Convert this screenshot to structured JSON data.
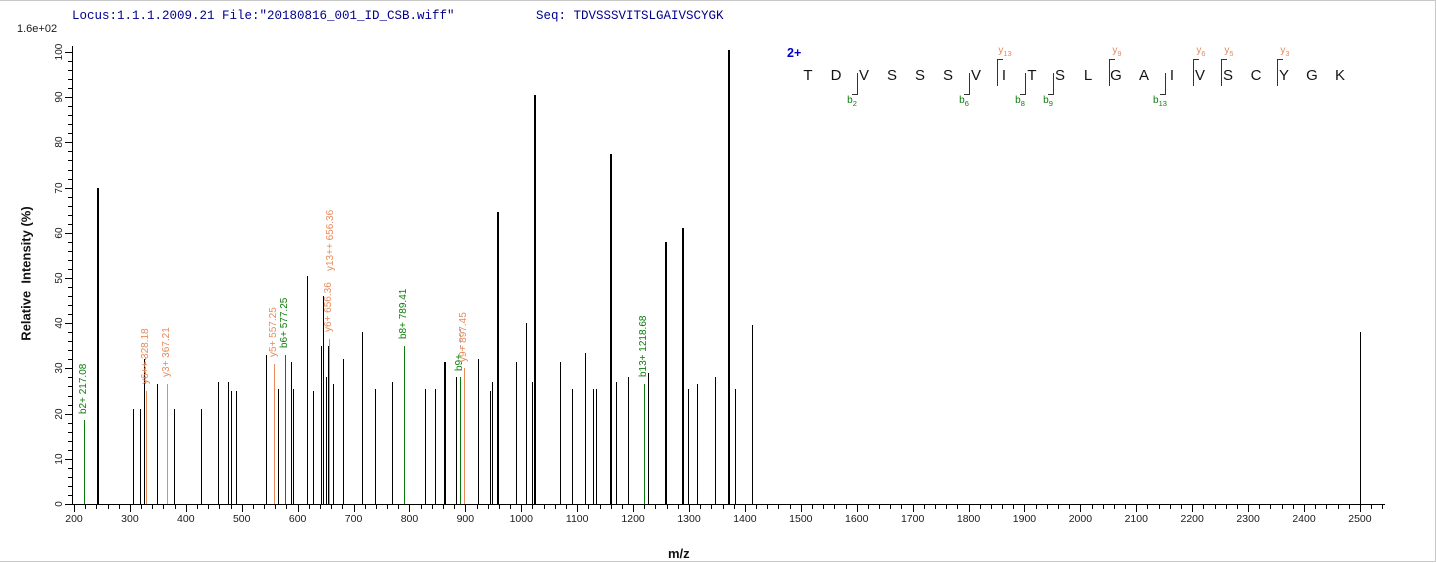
{
  "header": {
    "locus_file": "Locus:1.1.1.2009.21 File:\"20180816_001_ID_CSB.wiff\"",
    "seq_line": "Seq: TDVSSSVITSLGAIVSCYGK"
  },
  "scale_label": "1.6e+02",
  "colors": {
    "b_ion": "#0a7d0a",
    "y_ion": "#e98a5a",
    "peak": "#000000",
    "header_text": "#00008b",
    "charge_text": "#0000cc",
    "leader_dash": "#a8a8a8"
  },
  "sequence_panel": {
    "charge_label": "2+",
    "residues": "TDVSSSVITSLGAIVSCYGK",
    "b_markers": [
      {
        "ion": "b",
        "num": "2",
        "gap_after_residue": 2
      },
      {
        "ion": "b",
        "num": "6",
        "gap_after_residue": 6
      },
      {
        "ion": "b",
        "num": "8",
        "gap_after_residue": 8
      },
      {
        "ion": "b",
        "num": "9",
        "gap_after_residue": 9
      },
      {
        "ion": "b",
        "num": "13",
        "gap_after_residue": 13
      }
    ],
    "y_markers": [
      {
        "ion": "y",
        "num": "13",
        "gap_after_residue": 7
      },
      {
        "ion": "y",
        "num": "9",
        "gap_after_residue": 11
      },
      {
        "ion": "y",
        "num": "6",
        "gap_after_residue": 14
      },
      {
        "ion": "y",
        "num": "5",
        "gap_after_residue": 15
      },
      {
        "ion": "y",
        "num": "3",
        "gap_after_residue": 17
      }
    ]
  },
  "chart_data": {
    "type": "bar",
    "subtype": "centroided MS/MS fragment spectrum",
    "title": "",
    "xlabel": "m/z",
    "ylabel": "Relative  Intensity (%)",
    "xlim": [
      200,
      2545
    ],
    "ylim": [
      0,
      100
    ],
    "max_intensity_scale": "1.6e+02",
    "x_ticks": [
      200,
      300,
      400,
      500,
      600,
      700,
      800,
      900,
      1000,
      1100,
      1200,
      1300,
      1400,
      1500,
      1600,
      1700,
      1800,
      1900,
      2000,
      2100,
      2200,
      2300,
      2400,
      2500
    ],
    "x_minor_step": 20,
    "y_ticks": [
      0,
      10,
      20,
      30,
      40,
      50,
      60,
      70,
      80,
      90,
      100
    ],
    "y_minor_step": 2,
    "grid": false,
    "legend": false,
    "peaks": [
      {
        "mz": 217.08,
        "pct": 18.5,
        "ion": "b"
      },
      {
        "mz": 240.6,
        "pct": 70,
        "ion": null
      },
      {
        "mz": 305,
        "pct": 21,
        "ion": null
      },
      {
        "mz": 318,
        "pct": 21,
        "ion": null
      },
      {
        "mz": 326,
        "pct": 32,
        "ion": null
      },
      {
        "mz": 328.18,
        "pct": 25,
        "ion": "y"
      },
      {
        "mz": 348,
        "pct": 26.5,
        "ion": null
      },
      {
        "mz": 367.21,
        "pct": 26.5,
        "ion": "y"
      },
      {
        "mz": 378,
        "pct": 21,
        "ion": null
      },
      {
        "mz": 428,
        "pct": 21,
        "ion": null
      },
      {
        "mz": 458,
        "pct": 27,
        "ion": null
      },
      {
        "mz": 476,
        "pct": 27,
        "ion": null
      },
      {
        "mz": 480,
        "pct": 25,
        "ion": null
      },
      {
        "mz": 490,
        "pct": 25,
        "ion": null
      },
      {
        "mz": 543,
        "pct": 33,
        "ion": null
      },
      {
        "mz": 557.25,
        "pct": 31,
        "ion": "y"
      },
      {
        "mz": 564,
        "pct": 25.5,
        "ion": null
      },
      {
        "mz": 577.25,
        "pct": 33,
        "ion": "b"
      },
      {
        "mz": 588,
        "pct": 31.5,
        "ion": null
      },
      {
        "mz": 591,
        "pct": 25.5,
        "ion": null
      },
      {
        "mz": 617,
        "pct": 50.5,
        "ion": null
      },
      {
        "mz": 627,
        "pct": 25,
        "ion": null
      },
      {
        "mz": 641,
        "pct": 35,
        "ion": null
      },
      {
        "mz": 645,
        "pct": 46,
        "ion": null
      },
      {
        "mz": 650,
        "pct": 28,
        "ion": null
      },
      {
        "mz": 654,
        "pct": 35,
        "ion": null
      },
      {
        "mz": 656.36,
        "pct": 36.5,
        "ion": "y"
      },
      {
        "mz": 664,
        "pct": 26.5,
        "ion": null
      },
      {
        "mz": 681,
        "pct": 32,
        "ion": null
      },
      {
        "mz": 715,
        "pct": 38,
        "ion": null
      },
      {
        "mz": 739,
        "pct": 25.5,
        "ion": null
      },
      {
        "mz": 768,
        "pct": 27,
        "ion": null
      },
      {
        "mz": 789.41,
        "pct": 35,
        "ion": "b"
      },
      {
        "mz": 828,
        "pct": 25.5,
        "ion": null
      },
      {
        "mz": 845,
        "pct": 25.5,
        "ion": null
      },
      {
        "mz": 861,
        "pct": 31.5,
        "ion": null
      },
      {
        "mz": 864,
        "pct": 31.5,
        "ion": null
      },
      {
        "mz": 883,
        "pct": 28,
        "ion": null
      },
      {
        "mz": 890.5,
        "pct": 28,
        "ion": "b"
      },
      {
        "mz": 897.45,
        "pct": 30,
        "ion": "y"
      },
      {
        "mz": 923,
        "pct": 32,
        "ion": null
      },
      {
        "mz": 944,
        "pct": 25,
        "ion": null
      },
      {
        "mz": 948,
        "pct": 27,
        "ion": null
      },
      {
        "mz": 956,
        "pct": 64.5,
        "ion": null
      },
      {
        "mz": 990,
        "pct": 31.5,
        "ion": null
      },
      {
        "mz": 1009,
        "pct": 40,
        "ion": null
      },
      {
        "mz": 1020,
        "pct": 27,
        "ion": null
      },
      {
        "mz": 1023,
        "pct": 90.5,
        "ion": null
      },
      {
        "mz": 1069,
        "pct": 31.5,
        "ion": null
      },
      {
        "mz": 1091,
        "pct": 25.5,
        "ion": null
      },
      {
        "mz": 1114,
        "pct": 33.5,
        "ion": null
      },
      {
        "mz": 1129,
        "pct": 25.5,
        "ion": null
      },
      {
        "mz": 1134,
        "pct": 25.5,
        "ion": null
      },
      {
        "mz": 1158,
        "pct": 77.5,
        "ion": null
      },
      {
        "mz": 1170,
        "pct": 27,
        "ion": null
      },
      {
        "mz": 1190,
        "pct": 28,
        "ion": null
      },
      {
        "mz": 1218.68,
        "pct": 26.5,
        "ion": "b"
      },
      {
        "mz": 1227,
        "pct": 29,
        "ion": null
      },
      {
        "mz": 1257,
        "pct": 58,
        "ion": null
      },
      {
        "mz": 1287,
        "pct": 61,
        "ion": null
      },
      {
        "mz": 1299,
        "pct": 25.5,
        "ion": null
      },
      {
        "mz": 1314,
        "pct": 26.5,
        "ion": null
      },
      {
        "mz": 1347,
        "pct": 28,
        "ion": null
      },
      {
        "mz": 1370,
        "pct": 100.5,
        "ion": null
      },
      {
        "mz": 1382,
        "pct": 25.5,
        "ion": null
      },
      {
        "mz": 1413,
        "pct": 39.5,
        "ion": null
      },
      {
        "mz": 2500,
        "pct": 38,
        "ion": null
      }
    ],
    "annotations": [
      {
        "text": "b2+ 217.08",
        "mz": 217.08,
        "bottom_pct": 20,
        "ion": "b"
      },
      {
        "text": "y6++ 328.18",
        "mz": 328.18,
        "bottom_pct": 26.5,
        "ion": "y"
      },
      {
        "text": "y3+ 367.21",
        "mz": 367.21,
        "bottom_pct": 28,
        "ion": "y"
      },
      {
        "text": "y5+ 557.25",
        "mz": 557.25,
        "bottom_pct": 32.5,
        "ion": "y"
      },
      {
        "text": "b6+ 577.25",
        "mz": 577.25,
        "bottom_pct": 34.5,
        "ion": "b"
      },
      {
        "text": "y6+ 656.36",
        "mz": 656.36,
        "bottom_pct": 38,
        "ion": "y"
      },
      {
        "text": "y13++ 656.36",
        "mz": 659,
        "bottom_pct": 51.5,
        "ion": "y"
      },
      {
        "text": "b8+ 789.41",
        "mz": 789.41,
        "bottom_pct": 36.5,
        "ion": "b"
      },
      {
        "text": "b9+",
        "mz": 890.5,
        "bottom_pct": 29.5,
        "ion": "b"
      },
      {
        "text": "y9+ 897.45",
        "mz": 897.45,
        "bottom_pct": 31.5,
        "ion": "y"
      },
      {
        "text": "b13+ 1218.68",
        "mz": 1218.68,
        "bottom_pct": 28,
        "ion": "b"
      }
    ],
    "leaders": [
      {
        "mz": 326.5,
        "from_pct": 26.5,
        "to_pct": 32.5
      },
      {
        "mz": 890.5,
        "from_pct": 34.5,
        "to_pct": 38.8
      }
    ]
  }
}
